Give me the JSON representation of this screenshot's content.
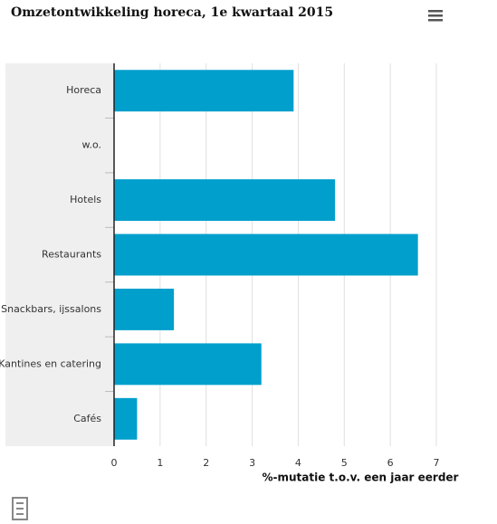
{
  "chart_data": {
    "type": "hbar",
    "title": "Omzetontwikkeling horeca, 1e kwartaal 2015",
    "x_label": "%-mutatie t.o.v. een jaar eerder",
    "categories": [
      "Horeca",
      "w.o.",
      "Hotels",
      "Restaurants",
      "Snackbars, ijssalons",
      "Kantines en catering",
      "Cafés"
    ],
    "values": [
      3.9,
      null,
      4.8,
      6.6,
      1.3,
      3.2,
      0.5
    ],
    "color": "#009fcc",
    "xlim": [
      0,
      7
    ],
    "xticks": [
      0,
      1,
      2,
      3,
      4,
      5,
      6,
      7
    ],
    "grid": true
  }
}
